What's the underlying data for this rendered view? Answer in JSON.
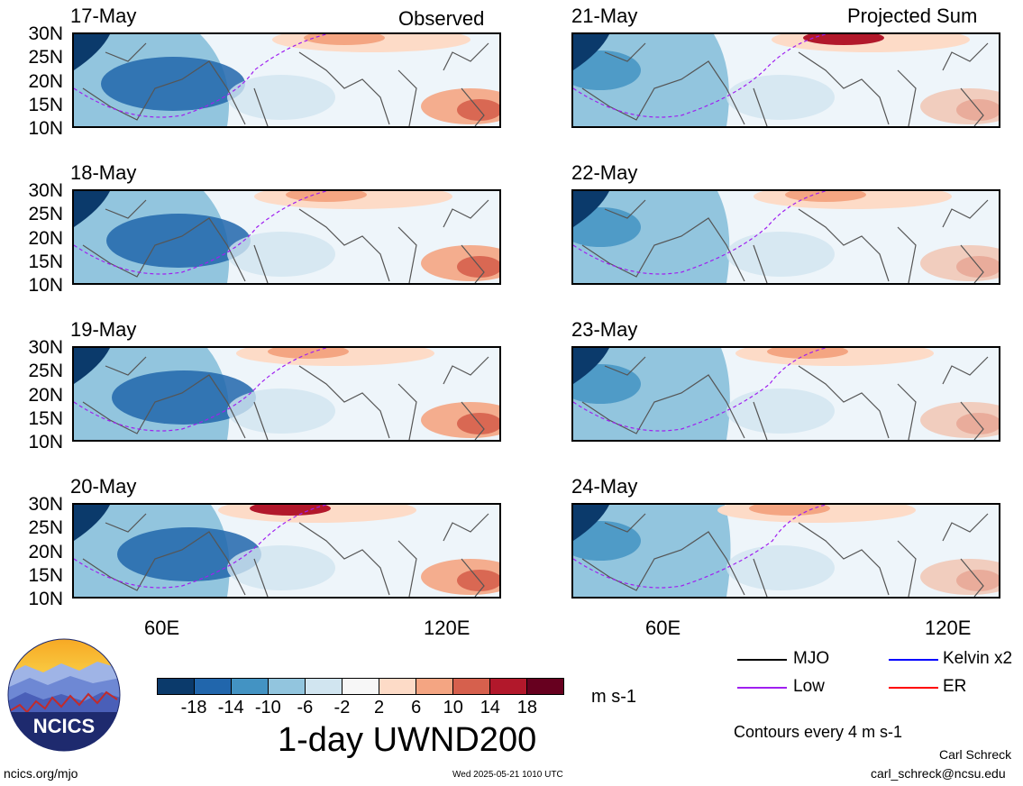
{
  "observed_label": "Observed",
  "projected_label": "Projected Sum",
  "panels": [
    {
      "date": "17-May"
    },
    {
      "date": "18-May"
    },
    {
      "date": "19-May"
    },
    {
      "date": "20-May"
    },
    {
      "date": "21-May"
    },
    {
      "date": "22-May"
    },
    {
      "date": "23-May"
    },
    {
      "date": "24-May"
    }
  ],
  "lat_labels": [
    "30N",
    "25N",
    "20N",
    "15N",
    "10N"
  ],
  "lon_labels": [
    "60E",
    "120E"
  ],
  "colorbar": {
    "ticks": [
      "-18",
      "-14",
      "-10",
      "-6",
      "-2",
      "2",
      "6",
      "10",
      "14",
      "18"
    ],
    "colors": [
      "#0b3a6b",
      "#2166ac",
      "#4393c3",
      "#92c5de",
      "#d1e5f0",
      "#f7f7f7",
      "#fddbc7",
      "#f4a582",
      "#d6604d",
      "#b2182b",
      "#67001f"
    ],
    "unit": "m s-1"
  },
  "title": "1-day UWND200",
  "legend": {
    "mjo": {
      "label": "MJO",
      "color": "#000000"
    },
    "kelvin": {
      "label": "Kelvin x2",
      "color": "#0000ff"
    },
    "low": {
      "label": "Low",
      "color": "#a020f0"
    },
    "er": {
      "label": "ER",
      "color": "#ff0000"
    },
    "contours": "Contours every 4 m s-1"
  },
  "logo_text": "NCICS",
  "footer": {
    "left": "ncics.org/mjo",
    "center": "Wed 2025-05-21 1010 UTC",
    "author": "Carl Schreck",
    "email": "carl_schreck@ncsu.edu"
  }
}
